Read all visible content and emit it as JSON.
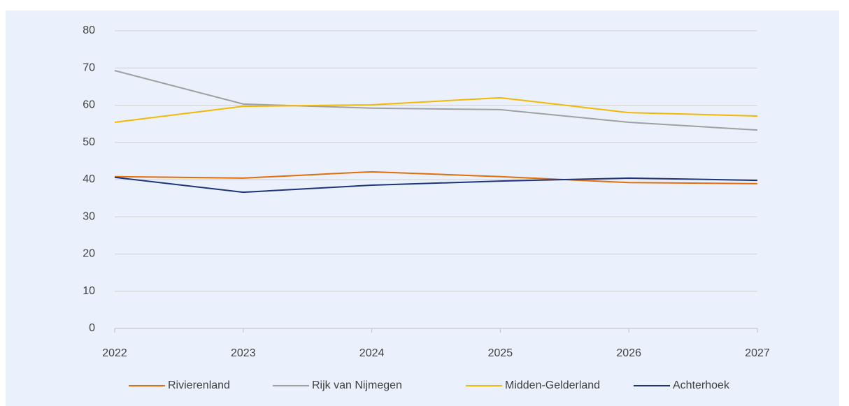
{
  "chart_data": {
    "type": "line",
    "categories": [
      "2022",
      "2023",
      "2024",
      "2025",
      "2026",
      "2027"
    ],
    "series": [
      {
        "name": "Rivierenland",
        "color": "#e46c0a",
        "values": [
          40.8,
          40.4,
          42.1,
          40.8,
          39.2,
          38.9
        ]
      },
      {
        "name": "Rijk van Nijmegen",
        "color": "#a0a0a0",
        "values": [
          69.3,
          60.3,
          59.2,
          58.8,
          55.4,
          53.3
        ]
      },
      {
        "name": "Midden-Gelderland",
        "color": "#f5b800",
        "values": [
          55.4,
          59.7,
          60.1,
          62.0,
          58.0,
          57.1
        ]
      },
      {
        "name": "Achterhoek",
        "color": "#1f3478",
        "values": [
          40.6,
          36.6,
          38.5,
          39.6,
          40.4,
          39.8
        ]
      }
    ],
    "ylim": [
      0,
      80
    ],
    "yticks": [
      0,
      10,
      20,
      30,
      40,
      50,
      60,
      70,
      80
    ],
    "grid": true,
    "legend": "bottom"
  }
}
